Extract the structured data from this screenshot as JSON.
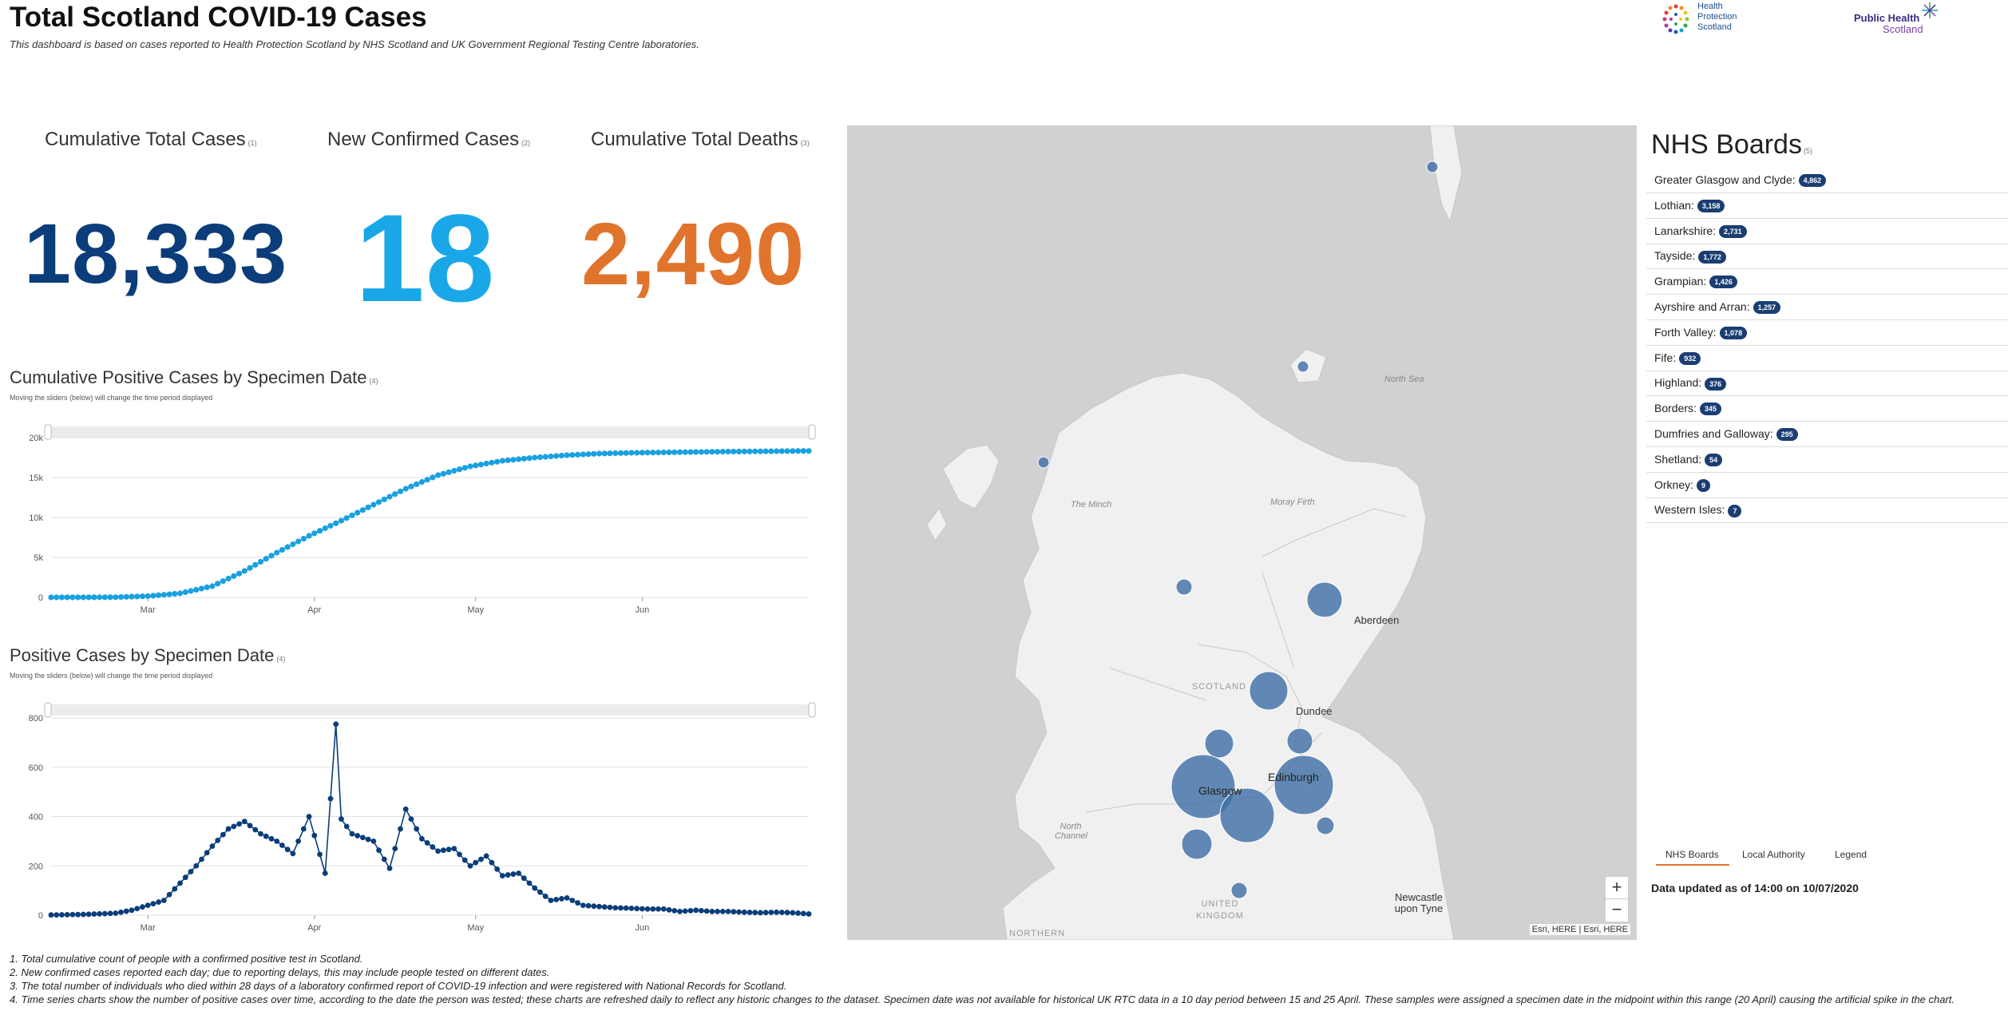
{
  "header": {
    "title": "Total Scotland COVID-19 Cases",
    "subtitle": "This dashboard is based on cases reported to Health Protection Scotland by NHS Scotland and UK Government Regional Testing Centre laboratories."
  },
  "logos": {
    "hps": {
      "line1": "Health",
      "line2": "Protection",
      "line3": "Scotland"
    },
    "phs": {
      "line1": "Public Health",
      "line2": "Scotland"
    }
  },
  "kpis": {
    "total_cases": {
      "label": "Cumulative Total Cases",
      "note": "(1)",
      "value": "18,333",
      "color": "#0a3d7a"
    },
    "new_cases": {
      "label": "New Confirmed Cases",
      "note": "(2)",
      "value": "18",
      "color": "#1aa7e8"
    },
    "total_deaths": {
      "label": "Cumulative Total Deaths",
      "note": "(3)",
      "value": "2,490",
      "color": "#e0742c"
    }
  },
  "charts": {
    "cumulative": {
      "title": "Cumulative Positive Cases by Specimen Date",
      "note": "(4)",
      "subtitle": "Moving the sliders (below) will change the time period displayed"
    },
    "daily": {
      "title": "Positive Cases by Specimen Date",
      "note": "(4)",
      "subtitle": "Moving the sliders (below) will change the time period displayed"
    }
  },
  "chart_data": [
    {
      "type": "line",
      "title": "Cumulative Positive Cases by Specimen Date",
      "xlabel": "",
      "ylabel": "",
      "ylim": [
        0,
        20000
      ],
      "yticks": [
        "0",
        "5k",
        "10k",
        "15k",
        "20k"
      ],
      "ytick_values": [
        0,
        5000,
        10000,
        15000,
        20000
      ],
      "xticks": [
        "Mar",
        "Apr",
        "May",
        "Jun"
      ],
      "xtick_days": [
        0,
        31,
        61,
        92
      ],
      "x_day_range": [
        -18,
        123
      ],
      "color": "#1aa0e0",
      "series": [
        {
          "name": "Cumulative cases",
          "x": [
            -18,
            -12,
            -6,
            0,
            6,
            12,
            18,
            24,
            30,
            36,
            42,
            48,
            54,
            60,
            66,
            72,
            78,
            84,
            90,
            96,
            102,
            108,
            114,
            120,
            123
          ],
          "values": [
            1,
            4,
            20,
            150,
            500,
            1400,
            3300,
            5600,
            7700,
            9600,
            11600,
            13600,
            15300,
            16400,
            17100,
            17500,
            17800,
            18000,
            18100,
            18150,
            18200,
            18250,
            18280,
            18320,
            18333
          ]
        }
      ]
    },
    {
      "type": "line",
      "title": "Positive Cases by Specimen Date",
      "xlabel": "",
      "ylabel": "",
      "ylim": [
        0,
        800
      ],
      "yticks": [
        "0",
        "200",
        "400",
        "600",
        "800"
      ],
      "ytick_values": [
        0,
        200,
        400,
        600,
        800
      ],
      "xticks": [
        "Mar",
        "Apr",
        "May",
        "Jun"
      ],
      "xtick_days": [
        0,
        31,
        61,
        92
      ],
      "x_day_range": [
        -18,
        123
      ],
      "color": "#0a3d7a",
      "series": [
        {
          "name": "Daily cases",
          "x": [
            -18,
            -12,
            -6,
            -3,
            0,
            3,
            6,
            9,
            12,
            15,
            18,
            21,
            24,
            27,
            30,
            33,
            35,
            36,
            38,
            42,
            45,
            48,
            51,
            54,
            57,
            60,
            63,
            66,
            69,
            72,
            75,
            78,
            81,
            84,
            87,
            90,
            93,
            96,
            99,
            102,
            105,
            108,
            111,
            114,
            117,
            120,
            123
          ],
          "values": [
            1,
            3,
            8,
            20,
            40,
            60,
            130,
            200,
            280,
            350,
            380,
            330,
            300,
            250,
            400,
            170,
            775,
            390,
            330,
            300,
            190,
            430,
            310,
            260,
            270,
            200,
            240,
            160,
            170,
            110,
            60,
            70,
            40,
            35,
            30,
            28,
            25,
            25,
            15,
            20,
            15,
            15,
            12,
            10,
            12,
            10,
            5
          ]
        }
      ]
    }
  ],
  "map": {
    "labels": {
      "north_sea": "North Sea",
      "moray_firth": "Moray Firth",
      "the_minch": "The Minch",
      "aberdeen": "Aberdeen",
      "dundee": "Dundee",
      "scotland": "SCOTLAND",
      "edinburgh": "Edinburgh",
      "glasgow": "Glasgow",
      "north_channel": "North Channel",
      "newcastle": "Newcastle upon Tyne",
      "uk": "UNITED KINGDOM",
      "northern": "NORTHERN"
    },
    "zoom_in": "+",
    "zoom_out": "−",
    "attribution": "Esri, HERE | Esri, HERE"
  },
  "boards": {
    "title": "NHS Boards",
    "note": "(5)",
    "items": [
      {
        "name": "Greater Glasgow and Clyde:",
        "count": "4,862"
      },
      {
        "name": "Lothian:",
        "count": "3,158"
      },
      {
        "name": "Lanarkshire:",
        "count": "2,731"
      },
      {
        "name": "Tayside:",
        "count": "1,772"
      },
      {
        "name": "Grampian:",
        "count": "1,426"
      },
      {
        "name": "Ayrshire and Arran:",
        "count": "1,257"
      },
      {
        "name": "Forth Valley:",
        "count": "1,078"
      },
      {
        "name": "Fife:",
        "count": "932"
      },
      {
        "name": "Highland:",
        "count": "376"
      },
      {
        "name": "Borders:",
        "count": "345"
      },
      {
        "name": "Dumfries and Galloway:",
        "count": "295"
      },
      {
        "name": "Shetland:",
        "count": "54"
      },
      {
        "name": "Orkney:",
        "count": "9"
      },
      {
        "name": "Western Isles:",
        "count": "7"
      }
    ],
    "tabs": [
      "NHS Boards",
      "Local Authority",
      "Legend"
    ],
    "updated": "Data updated as of 14:00 on 10/07/2020"
  },
  "footnotes": [
    "1. Total cumulative count of people with a confirmed positive test in Scotland.",
    "2. New confirmed cases reported each day; due to reporting delays, this may include people tested on different dates.",
    "3. The total number of individuals who died within 28 days of a laboratory confirmed report of COVID-19 infection and were registered with National Records for Scotland.",
    "4. Time series charts show the number of positive cases over time, according to the date the person was tested; these charts are refreshed daily to reflect any historic changes to the dataset. Specimen date was not available for historical UK RTC data in a 10 day period between 15 and 25 April. These samples were assigned a specimen date in the midpoint within this range (20 April) causing the artificial spike in the chart."
  ]
}
